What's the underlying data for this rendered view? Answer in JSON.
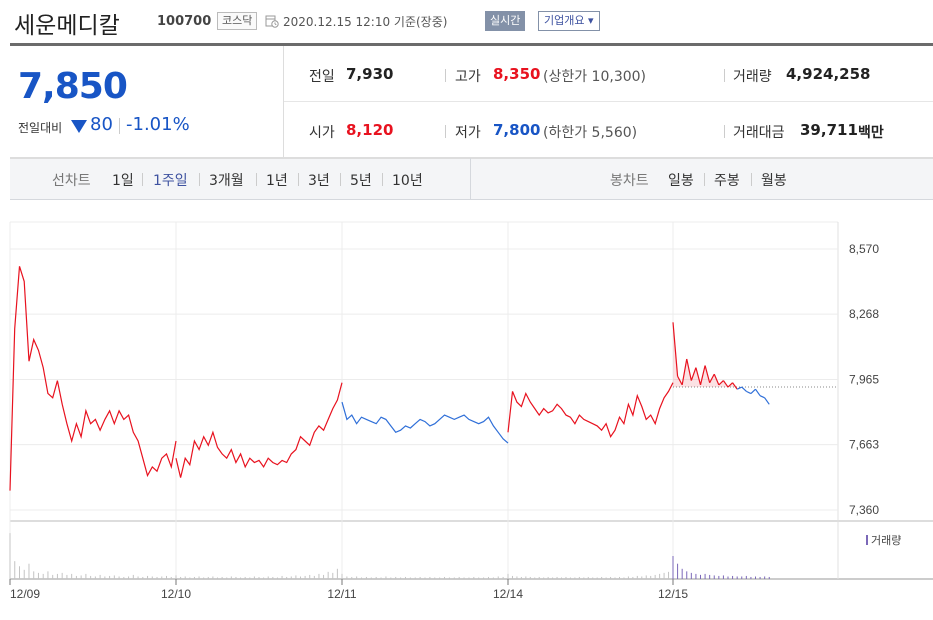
{
  "header": {
    "name": "세운메디칼",
    "code": "100700",
    "market": "코스닥",
    "datetime": "2020.12.15 12:10  기준(장중)",
    "realtime_btn": "실시간",
    "company_btn": "기업개요 ▾"
  },
  "summary": {
    "price": "7,850",
    "change_label": "전일대비",
    "change_value": "80",
    "change_rate": "-1.01%",
    "prev": {
      "label": "전일",
      "value": "7,930"
    },
    "open": {
      "label": "시가",
      "value": "8,120"
    },
    "high": {
      "label": "고가",
      "value": "8,350",
      "limit": "(상한가 10,300)"
    },
    "low": {
      "label": "저가",
      "value": "7,800",
      "limit": "(하한가 5,560)"
    },
    "volume": {
      "label": "거래량",
      "value": "4,924,258"
    },
    "amount": {
      "label": "거래대금",
      "value": "39,711",
      "unit": "백만"
    }
  },
  "toolbar": {
    "line_label": "선차트",
    "line_periods": [
      "1일",
      "1주일",
      "3개월",
      "1년",
      "3년",
      "5년",
      "10년"
    ],
    "candle_label": "봉차트",
    "candle_periods": [
      "일봉",
      "주봉",
      "월봉"
    ]
  },
  "colors": {
    "up": "#e8121f",
    "down": "#2f6fd8",
    "volume": "#7b68b8"
  },
  "chart_data": {
    "type": "line",
    "y_ticks": [
      "8,570",
      "8,268",
      "7,965",
      "7,663",
      "7,360"
    ],
    "ylim": [
      7360,
      8570
    ],
    "x_ticks": [
      "12/09",
      "12/10",
      "12/11",
      "12/14",
      "12/15"
    ],
    "prev_close": 7930,
    "volume_label": "거래량",
    "series": [
      {
        "day": "12/09",
        "color": "up",
        "values": [
          7450,
          8200,
          8490,
          8420,
          8050,
          8150,
          8100,
          8020,
          7900,
          7880,
          7960,
          7850,
          7760,
          7680,
          7760,
          7700,
          7820,
          7760,
          7780,
          7730,
          7780,
          7820,
          7760,
          7820,
          7780,
          7800,
          7720,
          7680,
          7600,
          7520,
          7560,
          7540,
          7600,
          7620,
          7560,
          7680
        ]
      },
      {
        "day": "12/10",
        "color": "up",
        "values": [
          7600,
          7510,
          7600,
          7570,
          7680,
          7640,
          7700,
          7660,
          7720,
          7650,
          7620,
          7600,
          7640,
          7580,
          7620,
          7560,
          7600,
          7580,
          7590,
          7560,
          7600,
          7580,
          7570,
          7590,
          7580,
          7620,
          7640,
          7700,
          7680,
          7660,
          7720,
          7750,
          7730,
          7780,
          7830,
          7870,
          7950
        ]
      },
      {
        "day": "12/11",
        "color": "down",
        "values": [
          7860,
          7780,
          7800,
          7760,
          7790,
          7780,
          7770,
          7760,
          7790,
          7780,
          7750,
          7720,
          7730,
          7750,
          7740,
          7760,
          7780,
          7770,
          7750,
          7760,
          7780,
          7800,
          7790,
          7780,
          7790,
          7800,
          7780,
          7770,
          7760,
          7770,
          7790,
          7750,
          7720,
          7690,
          7670
        ]
      },
      {
        "day": "12/14",
        "color": "up",
        "values": [
          7720,
          7910,
          7860,
          7840,
          7900,
          7860,
          7830,
          7800,
          7830,
          7810,
          7820,
          7850,
          7830,
          7800,
          7790,
          7760,
          7800,
          7780,
          7770,
          7760,
          7750,
          7730,
          7760,
          7700,
          7730,
          7790,
          7760,
          7850,
          7800,
          7890,
          7840,
          7780,
          7800,
          7760,
          7830,
          7880,
          7910,
          7950
        ]
      },
      {
        "day": "12/15",
        "color": "mixed",
        "values": [
          8230,
          7980,
          7940,
          8060,
          7960,
          8020,
          7940,
          8030,
          7950,
          7990,
          7940,
          7960,
          7930,
          7950,
          7920,
          7930,
          7910,
          7900,
          7920,
          7890,
          7880,
          7850
        ]
      }
    ],
    "volume_relative": [
      [
        0.9,
        0.35,
        0.25,
        0.18,
        0.3,
        0.15,
        0.12,
        0.1,
        0.15,
        0.08,
        0.1,
        0.12,
        0.08,
        0.1,
        0.06,
        0.07,
        0.1,
        0.06,
        0.05,
        0.08,
        0.05,
        0.06,
        0.07,
        0.05,
        0.04,
        0.05,
        0.08,
        0.05,
        0.04,
        0.06,
        0.05,
        0.04,
        0.05,
        0.06,
        0.04,
        0.07
      ],
      [
        0.06,
        0.04,
        0.05,
        0.03,
        0.04,
        0.05,
        0.03,
        0.04,
        0.05,
        0.03,
        0.04,
        0.03,
        0.05,
        0.04,
        0.03,
        0.04,
        0.03,
        0.05,
        0.04,
        0.03,
        0.05,
        0.04,
        0.03,
        0.06,
        0.04,
        0.05,
        0.07,
        0.05,
        0.06,
        0.08,
        0.06,
        0.1,
        0.08,
        0.14,
        0.12,
        0.2,
        0.1
      ],
      [
        0.08,
        0.05,
        0.04,
        0.05,
        0.03,
        0.04,
        0.03,
        0.04,
        0.03,
        0.05,
        0.03,
        0.04,
        0.03,
        0.04,
        0.03,
        0.03,
        0.04,
        0.03,
        0.04,
        0.03,
        0.03,
        0.04,
        0.03,
        0.03,
        0.04,
        0.03,
        0.03,
        0.04,
        0.03,
        0.03,
        0.04,
        0.03,
        0.05,
        0.04,
        0.05
      ],
      [
        0.1,
        0.06,
        0.05,
        0.04,
        0.05,
        0.04,
        0.03,
        0.04,
        0.03,
        0.04,
        0.03,
        0.04,
        0.03,
        0.04,
        0.03,
        0.03,
        0.04,
        0.03,
        0.04,
        0.03,
        0.03,
        0.04,
        0.03,
        0.04,
        0.03,
        0.04,
        0.03,
        0.05,
        0.04,
        0.06,
        0.05,
        0.07,
        0.06,
        0.08,
        0.1,
        0.12,
        0.14,
        0.2
      ],
      [
        0.45,
        0.3,
        0.2,
        0.15,
        0.12,
        0.1,
        0.08,
        0.1,
        0.08,
        0.07,
        0.06,
        0.07,
        0.05,
        0.06,
        0.05,
        0.05,
        0.06,
        0.04,
        0.05,
        0.04,
        0.05,
        0.04
      ]
    ]
  }
}
